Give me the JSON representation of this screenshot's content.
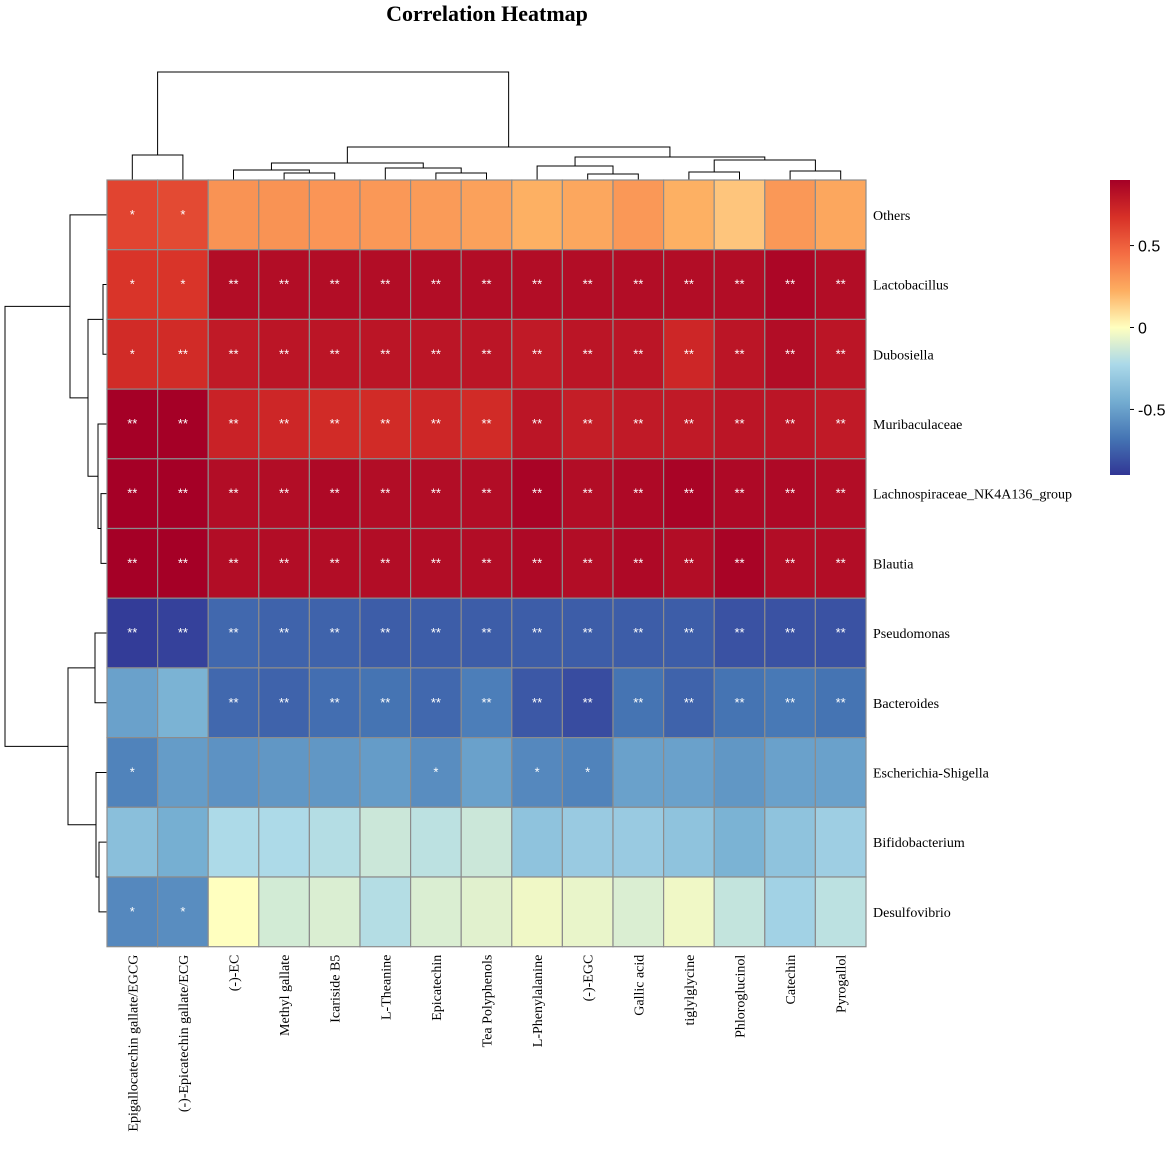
{
  "chart_data": {
    "type": "heatmap",
    "title": "Correlation Heatmap",
    "rows": [
      "Others",
      "Lactobacillus",
      "Dubosiella",
      "Muribaculaceae",
      "Lachnospiraceae_NK4A136_group",
      "Blautia",
      "Pseudomonas",
      "Bacteroides",
      "Escherichia-Shigella",
      "Bifidobacterium",
      "Desulfovibrio"
    ],
    "columns": [
      "Epigallocatechin gallate/EGCG",
      "(-)-Epicatechin gallate/ECG",
      "(-)-EC",
      "Methyl gallate",
      "Icariside B5",
      "L-Theanine",
      "Epicatechin",
      "Tea Polyphenols",
      "L-Phenylalanine",
      "(-)-EGC",
      "Gallic acid",
      "tiglylglycine",
      "Phloroglucinol",
      "Catechin",
      "Pyrogallol"
    ],
    "values": [
      [
        0.6,
        0.58,
        0.32,
        0.32,
        0.31,
        0.3,
        0.29,
        0.27,
        0.22,
        0.25,
        0.3,
        0.22,
        0.16,
        0.3,
        0.25
      ],
      [
        0.66,
        0.66,
        0.84,
        0.84,
        0.84,
        0.84,
        0.84,
        0.84,
        0.84,
        0.84,
        0.84,
        0.84,
        0.84,
        0.87,
        0.84
      ],
      [
        0.7,
        0.7,
        0.78,
        0.8,
        0.8,
        0.8,
        0.8,
        0.8,
        0.78,
        0.8,
        0.8,
        0.72,
        0.8,
        0.84,
        0.8
      ],
      [
        0.92,
        0.92,
        0.74,
        0.72,
        0.7,
        0.7,
        0.72,
        0.7,
        0.8,
        0.76,
        0.78,
        0.78,
        0.8,
        0.8,
        0.78
      ],
      [
        0.94,
        0.94,
        0.84,
        0.84,
        0.86,
        0.84,
        0.84,
        0.84,
        0.88,
        0.84,
        0.86,
        0.88,
        0.86,
        0.86,
        0.84
      ],
      [
        0.92,
        0.92,
        0.84,
        0.84,
        0.84,
        0.84,
        0.84,
        0.84,
        0.86,
        0.84,
        0.86,
        0.84,
        0.88,
        0.84,
        0.84
      ],
      [
        -0.88,
        -0.86,
        -0.72,
        -0.74,
        -0.74,
        -0.76,
        -0.76,
        -0.76,
        -0.76,
        -0.76,
        -0.76,
        -0.76,
        -0.8,
        -0.8,
        -0.8
      ],
      [
        -0.5,
        -0.42,
        -0.72,
        -0.74,
        -0.7,
        -0.68,
        -0.72,
        -0.64,
        -0.78,
        -0.82,
        -0.68,
        -0.74,
        -0.68,
        -0.66,
        -0.68
      ],
      [
        -0.62,
        -0.52,
        -0.56,
        -0.54,
        -0.54,
        -0.52,
        -0.58,
        -0.5,
        -0.6,
        -0.62,
        -0.5,
        -0.5,
        -0.54,
        -0.5,
        -0.5
      ],
      [
        -0.36,
        -0.44,
        -0.22,
        -0.22,
        -0.2,
        -0.14,
        -0.18,
        -0.14,
        -0.34,
        -0.3,
        -0.3,
        -0.34,
        -0.42,
        -0.34,
        -0.28
      ],
      [
        -0.6,
        -0.58,
        0.0,
        -0.12,
        -0.1,
        -0.2,
        -0.1,
        -0.08,
        -0.04,
        -0.06,
        -0.1,
        -0.04,
        -0.16,
        -0.26,
        -0.18
      ]
    ],
    "significance": [
      [
        "*",
        "*",
        "",
        "",
        "",
        "",
        "",
        "",
        "",
        "",
        "",
        "",
        "",
        "",
        ""
      ],
      [
        "*",
        "*",
        "**",
        "**",
        "**",
        "**",
        "**",
        "**",
        "**",
        "**",
        "**",
        "**",
        "**",
        "**",
        "**"
      ],
      [
        "*",
        "**",
        "**",
        "**",
        "**",
        "**",
        "**",
        "**",
        "**",
        "**",
        "**",
        "**",
        "**",
        "**",
        "**"
      ],
      [
        "**",
        "**",
        "**",
        "**",
        "**",
        "**",
        "**",
        "**",
        "**",
        "**",
        "**",
        "**",
        "**",
        "**",
        "**"
      ],
      [
        "**",
        "**",
        "**",
        "**",
        "**",
        "**",
        "**",
        "**",
        "**",
        "**",
        "**",
        "**",
        "**",
        "**",
        "**"
      ],
      [
        "**",
        "**",
        "**",
        "**",
        "**",
        "**",
        "**",
        "**",
        "**",
        "**",
        "**",
        "**",
        "**",
        "**",
        "**"
      ],
      [
        "**",
        "**",
        "**",
        "**",
        "**",
        "**",
        "**",
        "**",
        "**",
        "**",
        "**",
        "**",
        "**",
        "**",
        "**"
      ],
      [
        "",
        "",
        "**",
        "**",
        "**",
        "**",
        "**",
        "**",
        "**",
        "**",
        "**",
        "**",
        "**",
        "**",
        "**"
      ],
      [
        "*",
        "",
        "",
        "",
        "",
        "",
        "*",
        "",
        "*",
        "*",
        "",
        "",
        "",
        "",
        ""
      ],
      [
        "",
        "",
        "",
        "",
        "",
        "",
        "",
        "",
        "",
        "",
        "",
        "",
        "",
        "",
        ""
      ],
      [
        "*",
        "*",
        "",
        "",
        "",
        "",
        "",
        "",
        "",
        "",
        "",
        "",
        "",
        "",
        ""
      ]
    ],
    "color_scale": {
      "range": [
        -0.9,
        0.9
      ],
      "colors": [
        "#313695",
        "#4575b4",
        "#74add1",
        "#abd9e9",
        "#ffffbf",
        "#fdae61",
        "#f46d43",
        "#d73027",
        "#a50026"
      ],
      "ticks": [
        0.5,
        0,
        -0.5
      ],
      "tick_labels": [
        "0.5",
        "0",
        "-0.5"
      ]
    },
    "legend_position": "right"
  }
}
